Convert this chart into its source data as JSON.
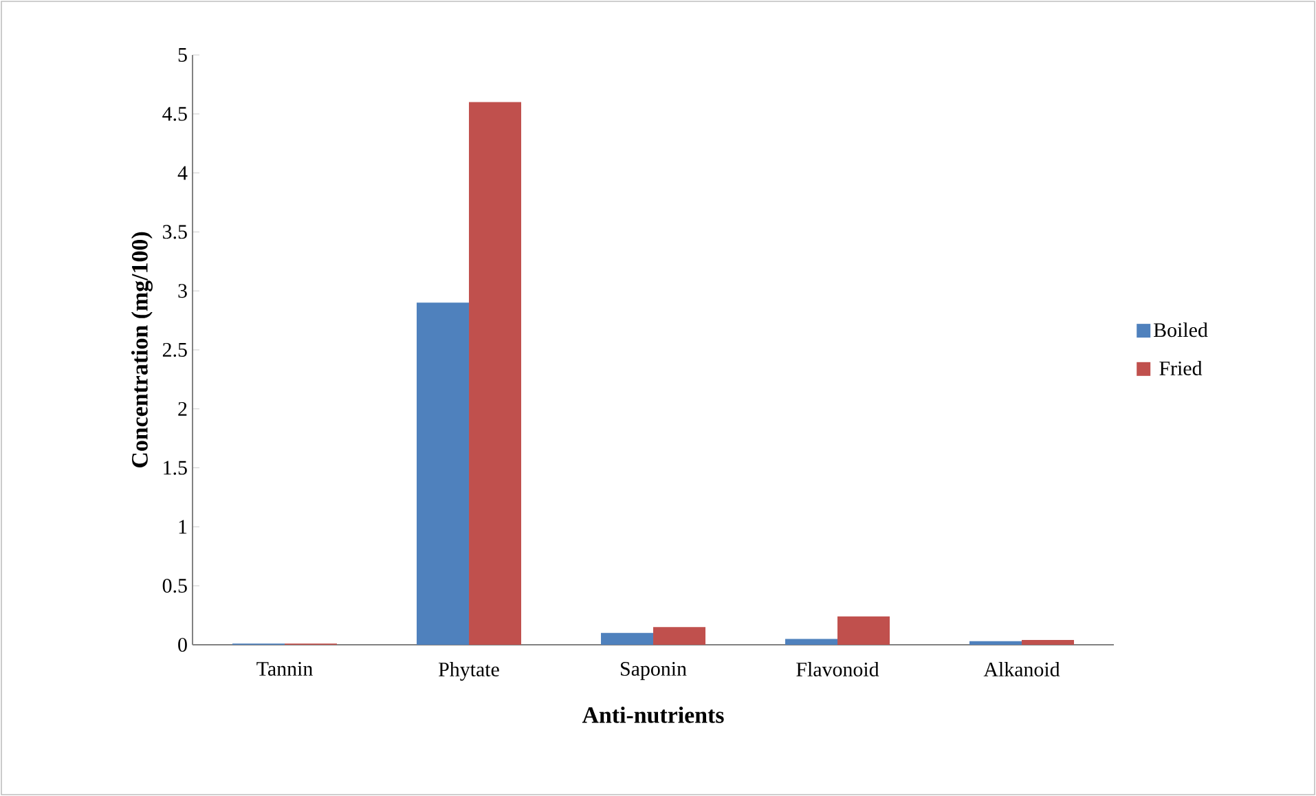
{
  "chart_data": {
    "type": "bar",
    "xlabel": "Anti-nutrients",
    "ylabel": "Concentration (mg/100)",
    "categories": [
      "Tannin",
      "Phytate",
      "Saponin",
      "Flavonoid",
      "Alkanoid"
    ],
    "series": [
      {
        "name": "Boiled",
        "color": "#4f81bd",
        "values": [
          0.01,
          2.9,
          0.1,
          0.05,
          0.03
        ]
      },
      {
        "name": "Fried",
        "color": "#c0504d",
        "values": [
          0.01,
          4.6,
          0.15,
          0.24,
          0.04
        ]
      }
    ],
    "ylim": [
      0,
      5
    ],
    "yticks": [
      0,
      0.5,
      1,
      1.5,
      2,
      2.5,
      3,
      3.5,
      4,
      4.5,
      5
    ],
    "grid": false,
    "legend": "right"
  }
}
